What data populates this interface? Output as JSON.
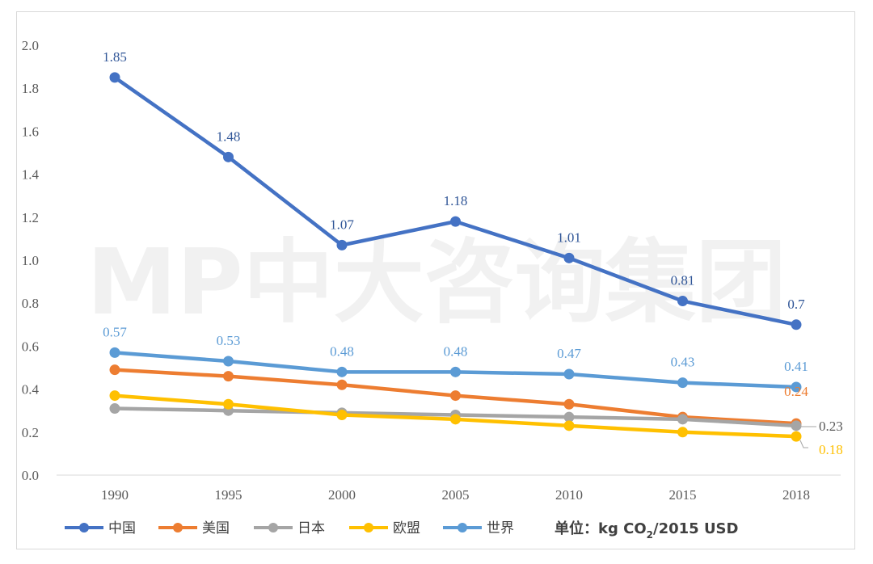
{
  "chart_data": {
    "type": "line",
    "categories": [
      "1990",
      "1995",
      "2000",
      "2005",
      "2010",
      "2015",
      "2018"
    ],
    "ylim": [
      0,
      2.0
    ],
    "yticks": [
      "0.0",
      "0.2",
      "0.4",
      "0.6",
      "0.8",
      "1.0",
      "1.2",
      "1.4",
      "1.6",
      "1.8",
      "2.0"
    ],
    "grid": false,
    "legend_position": "bottom-left",
    "series": [
      {
        "name": "中国",
        "color": "#4472C4",
        "values": [
          1.85,
          1.48,
          1.07,
          1.18,
          1.01,
          0.81,
          0.7
        ],
        "labels": [
          "1.85",
          "1.48",
          "1.07",
          "1.18",
          "1.01",
          "0.81",
          "0.7"
        ],
        "label_color": "#2F5597"
      },
      {
        "name": "美国",
        "color": "#ED7D31",
        "values": [
          0.49,
          0.46,
          0.42,
          0.37,
          0.33,
          0.27,
          0.24
        ],
        "labels": [
          "",
          "",
          "",
          "",
          "",
          "",
          "0.24"
        ],
        "label_color": "#ED7D31"
      },
      {
        "name": "日本",
        "color": "#A5A5A5",
        "values": [
          0.31,
          0.3,
          0.29,
          0.28,
          0.27,
          0.26,
          0.23
        ],
        "labels": [
          "",
          "",
          "",
          "",
          "",
          "",
          "0.23"
        ],
        "label_color": "#595959"
      },
      {
        "name": "欧盟",
        "color": "#FFC000",
        "values": [
          0.37,
          0.33,
          0.28,
          0.26,
          0.23,
          0.2,
          0.18
        ],
        "labels": [
          "",
          "",
          "",
          "",
          "",
          "",
          "0.18"
        ],
        "label_color": "#FFC000"
      },
      {
        "name": "世界",
        "color": "#5B9BD5",
        "values": [
          0.57,
          0.53,
          0.48,
          0.48,
          0.47,
          0.43,
          0.41
        ],
        "labels": [
          "0.57",
          "0.53",
          "0.48",
          "0.48",
          "0.47",
          "0.43",
          "0.41"
        ],
        "label_color": "#5B9BD5"
      }
    ],
    "unit_label": {
      "prefix": "单位：kg CO",
      "subscript": "2",
      "suffix": "/2015 USD"
    },
    "watermark": "MP中大咨询集团"
  }
}
